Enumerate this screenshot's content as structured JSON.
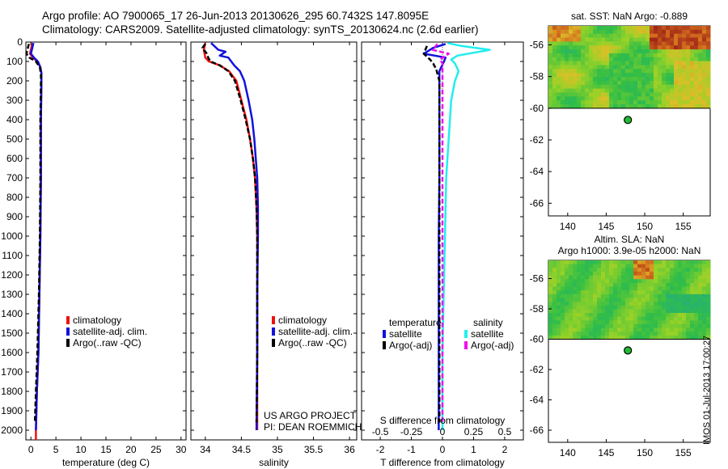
{
  "header": {
    "title_line1": "Argo profile: AO 7900065_17 26-Jun-2013 20130626_295 60.7432S 147.8095E",
    "title_line2": "Climatology: CARS2009. Satellite-adjusted climatology: synTS_20130624.nc (2.6d earlier)"
  },
  "timestamp": "IMOS 01-Jul-2013 17:00:27",
  "colors": {
    "climatology": "#ee1111",
    "satellite": "#1111dd",
    "argo": "#000000",
    "salinity_satellite": "#22eeee",
    "salinity_argo": "#ee11ee"
  },
  "chart_data": [
    {
      "type": "line",
      "title": "",
      "xlabel": "temperature (deg C)",
      "ylabel": "",
      "xlim": [
        -1,
        31
      ],
      "ylim": [
        2050,
        0
      ],
      "xticks": [
        "0",
        "5",
        "10",
        "15",
        "20",
        "25",
        "30"
      ],
      "yticks": [
        "0",
        "100",
        "200",
        "300",
        "400",
        "500",
        "600",
        "700",
        "800",
        "900",
        "1000",
        "1100",
        "1200",
        "1300",
        "1400",
        "1500",
        "1600",
        "1700",
        "1800",
        "1900",
        "2000"
      ],
      "legend": [
        "climatology",
        "satellite-adj. clim.",
        "Argo(..raw -QC)"
      ],
      "series": [
        {
          "name": "climatology",
          "points": [
            [
              0.3,
              5
            ],
            [
              0.0,
              40
            ],
            [
              -0.2,
              60
            ],
            [
              0.4,
              80
            ],
            [
              1.3,
              100
            ],
            [
              1.9,
              130
            ],
            [
              2.1,
              160
            ],
            [
              2.1,
              200
            ],
            [
              2.0,
              400
            ],
            [
              2.0,
              700
            ],
            [
              1.9,
              1000
            ],
            [
              1.7,
              1300
            ],
            [
              1.5,
              1600
            ],
            [
              1.2,
              1800
            ],
            [
              1.0,
              2000
            ],
            [
              1.0,
              2050
            ]
          ]
        },
        {
          "name": "satellite-adj. clim.",
          "points": [
            [
              0.5,
              5
            ],
            [
              0.2,
              40
            ],
            [
              0.0,
              60
            ],
            [
              0.6,
              80
            ],
            [
              1.4,
              100
            ],
            [
              1.9,
              130
            ],
            [
              2.1,
              160
            ],
            [
              2.1,
              200
            ],
            [
              2.0,
              400
            ],
            [
              2.0,
              700
            ],
            [
              1.9,
              1000
            ],
            [
              1.7,
              1300
            ],
            [
              1.5,
              1600
            ],
            [
              1.2,
              1800
            ],
            [
              1.0,
              2000
            ]
          ]
        },
        {
          "name": "Argo(..raw -QC)",
          "points": [
            [
              -0.4,
              10
            ],
            [
              -0.6,
              30
            ],
            [
              -0.9,
              60
            ],
            [
              -0.3,
              80
            ],
            [
              1.0,
              100
            ],
            [
              1.8,
              130
            ],
            [
              2.0,
              170
            ],
            [
              2.0,
              200
            ],
            [
              1.9,
              400
            ],
            [
              1.9,
              700
            ],
            [
              1.8,
              1000
            ],
            [
              1.6,
              1300
            ],
            [
              1.3,
              1600
            ],
            [
              1.0,
              1800
            ],
            [
              0.8,
              1960
            ]
          ]
        }
      ]
    },
    {
      "type": "line",
      "title": "",
      "xlabel": "salinity",
      "ylabel": "",
      "xlim": [
        33.8,
        36.1
      ],
      "ylim": [
        2050,
        0
      ],
      "xticks": [
        "34",
        "34.5",
        "35",
        "35.5",
        "36"
      ],
      "legend": [
        "climatology",
        "satellite-adj. clim.",
        "Argo(..raw -QC)"
      ],
      "annotations": [
        "US ARGO PROJECT",
        "PI: DEAN ROEMMICH"
      ],
      "series": [
        {
          "name": "climatology",
          "points": [
            [
              34.0,
              5
            ],
            [
              33.98,
              40
            ],
            [
              34.0,
              80
            ],
            [
              34.05,
              100
            ],
            [
              34.2,
              120
            ],
            [
              34.33,
              150
            ],
            [
              34.43,
              200
            ],
            [
              34.5,
              300
            ],
            [
              34.57,
              400
            ],
            [
              34.62,
              500
            ],
            [
              34.66,
              600
            ],
            [
              34.69,
              700
            ],
            [
              34.71,
              850
            ],
            [
              34.72,
              1000
            ],
            [
              34.72,
              1300
            ],
            [
              34.72,
              1600
            ],
            [
              34.72,
              2000
            ]
          ]
        },
        {
          "name": "satellite-adj. clim.",
          "points": [
            [
              34.08,
              5
            ],
            [
              34.18,
              40
            ],
            [
              34.28,
              50
            ],
            [
              34.2,
              70
            ],
            [
              34.32,
              80
            ],
            [
              34.4,
              120
            ],
            [
              34.48,
              150
            ],
            [
              34.54,
              200
            ],
            [
              34.6,
              300
            ],
            [
              34.65,
              400
            ],
            [
              34.68,
              500
            ],
            [
              34.7,
              600
            ],
            [
              34.72,
              700
            ],
            [
              34.73,
              850
            ],
            [
              34.73,
              1000
            ],
            [
              34.72,
              1300
            ],
            [
              34.72,
              1600
            ],
            [
              34.71,
              2000
            ]
          ]
        },
        {
          "name": "Argo(..raw -QC)",
          "points": [
            [
              34.0,
              10
            ],
            [
              33.96,
              30
            ],
            [
              34.02,
              60
            ],
            [
              34.04,
              80
            ],
            [
              34.07,
              100
            ],
            [
              34.2,
              120
            ],
            [
              34.32,
              150
            ],
            [
              34.41,
              200
            ],
            [
              34.49,
              300
            ],
            [
              34.56,
              400
            ],
            [
              34.62,
              500
            ],
            [
              34.66,
              600
            ],
            [
              34.69,
              700
            ],
            [
              34.71,
              850
            ],
            [
              34.72,
              1000
            ],
            [
              34.72,
              1300
            ],
            [
              34.72,
              1600
            ],
            [
              34.71,
              1960
            ]
          ]
        }
      ]
    },
    {
      "type": "line",
      "title": "",
      "xlabel": "T difference from climatology",
      "xlabel_top": "S difference from climatology",
      "ylabel": "",
      "xlim": [
        -2.6,
        2.6
      ],
      "ylim": [
        2050,
        0
      ],
      "xticks": [
        "-2",
        "-1",
        "0",
        "1",
        "2"
      ],
      "xticks_top": [
        "-0.5",
        "-0.25",
        "0",
        "0.25",
        "0.5"
      ],
      "legend_headers": [
        "temperature",
        "salinity"
      ],
      "legend": [
        "satellite",
        "Argo(-adj)",
        "satellite",
        "Argo(-adj)"
      ],
      "series": [
        {
          "name": "satellite",
          "group": "temperature",
          "points": [
            [
              0.1,
              10
            ],
            [
              -0.3,
              30
            ],
            [
              -0.6,
              60
            ],
            [
              0.1,
              80
            ],
            [
              0.05,
              100
            ],
            [
              -0.1,
              150
            ],
            [
              -0.1,
              200
            ],
            [
              -0.1,
              400
            ],
            [
              -0.1,
              700
            ],
            [
              -0.12,
              1000
            ],
            [
              -0.12,
              1300
            ],
            [
              -0.12,
              1600
            ],
            [
              -0.12,
              2000
            ]
          ]
        },
        {
          "name": "Argo(-adj)",
          "group": "temperature",
          "points": [
            [
              -0.5,
              20
            ],
            [
              -0.6,
              60
            ],
            [
              -0.4,
              90
            ],
            [
              -0.3,
              110
            ],
            [
              -0.2,
              140
            ],
            [
              -0.1,
              200
            ],
            [
              -0.1,
              400
            ],
            [
              -0.1,
              1000
            ],
            [
              -0.1,
              1600
            ],
            [
              -0.1,
              1960
            ]
          ]
        },
        {
          "name": "satellite",
          "group": "salinity",
          "points": [
            [
              0.04,
              5
            ],
            [
              0.15,
              20
            ],
            [
              0.38,
              40
            ],
            [
              0.12,
              70
            ],
            [
              0.07,
              90
            ],
            [
              0.1,
              110
            ],
            [
              0.13,
              150
            ],
            [
              0.1,
              200
            ],
            [
              0.07,
              300
            ],
            [
              0.05,
              500
            ],
            [
              0.03,
              700
            ],
            [
              0.02,
              1000
            ],
            [
              0.01,
              1300
            ],
            [
              0.0,
              1600
            ],
            [
              0.0,
              2000
            ]
          ]
        },
        {
          "name": "Argo(-adj)",
          "group": "salinity",
          "points": [
            [
              -0.04,
              10
            ],
            [
              -0.08,
              40
            ],
            [
              0.05,
              60
            ],
            [
              -0.02,
              90
            ],
            [
              0.0,
              110
            ],
            [
              0.0,
              150
            ],
            [
              0.0,
              300
            ],
            [
              0.0,
              600
            ],
            [
              0.0,
              1000
            ],
            [
              0.0,
              1500
            ],
            [
              0.0,
              1960
            ]
          ]
        }
      ]
    },
    {
      "type": "heatmap",
      "title": "sat. SST: NaN Argo: -0.889",
      "xlim": [
        137.5,
        158.5
      ],
      "ylim": [
        -66.8,
        -54.8
      ],
      "xticks": [
        "140",
        "145",
        "150",
        "155"
      ],
      "yticks": [
        "-56",
        "-58",
        "-60",
        "-62",
        "-64",
        "-66"
      ],
      "data_extent": {
        "lat": [
          -60,
          -54.8
        ]
      },
      "marker": {
        "lon": 147.81,
        "lat": -60.74
      }
    },
    {
      "type": "heatmap",
      "title": "Altim. SLA: NaN",
      "subtitle": "Argo h1000: 3.9e-05 h2000: NaN",
      "xlim": [
        137.5,
        158.5
      ],
      "ylim": [
        -66.8,
        -54.8
      ],
      "xticks": [
        "140",
        "145",
        "150",
        "155"
      ],
      "yticks": [
        "-56",
        "-58",
        "-60",
        "-62",
        "-64",
        "-66"
      ],
      "data_extent": {
        "lat": [
          -60,
          -54.8
        ]
      },
      "marker": {
        "lon": 147.81,
        "lat": -60.74
      }
    }
  ]
}
